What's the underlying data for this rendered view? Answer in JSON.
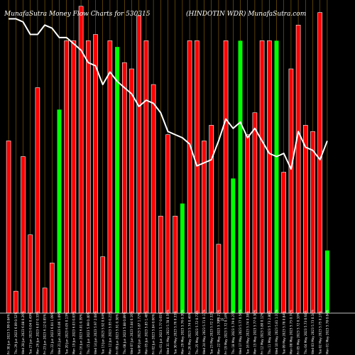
{
  "chart_data": {
    "type": "bar",
    "title_left": "MunafaSutra  Money Flow  Charts for 530315",
    "title_right": "(HINDOTIN WDR)  MunafaSutra.com",
    "categories": [
      "Fri 30 Jun 2023",
      "Thu 29 Jun 2023",
      "Wed 28 Jun 2023",
      "Tue 27 Jun 2023",
      "Mon 26 Jun 2023",
      "Fri 23 Jun 2023",
      "Thu 22 Jun 2023",
      "Wed 21 Jun 2023",
      "Tue 20 Jun 2023",
      "Mon 19 Jun 2023",
      "Fri 16 Jun 2023",
      "Thu 15 Jun 2023",
      "Wed 14 Jun 2023",
      "Tue 13 Jun 2023",
      "Mon 12 Jun 2023",
      "Fri 09 Jun 2023",
      "Thu 08 Jun 2023",
      "Wed 07 Jun 2023",
      "Tue 06 Jun 2023",
      "Mon 05 Jun 2023",
      "Fri 02 Jun 2023",
      "Thu 01 Jun 2023",
      "Wed 31 May 2023",
      "Tue 30 May 2023",
      "Mon 29 May 2023",
      "Fri 26 May 2023",
      "Thu 25 May 2023",
      "Wed 24 May 2023",
      "Tue 23 May 2023",
      "Mon 22 May 2023",
      "Fri 19 May 2023",
      "Thu 18 May 2023",
      "Wed 17 May 2023",
      "Tue 16 May 2023",
      "Mon 15 May 2023",
      "Fri 12 May 2023",
      "Thu 11 May 2023",
      "Wed 10 May 2023",
      "Tue 09 May 2023",
      "Mon 08 May 2023",
      "Fri 05 May 2023",
      "Thu 04 May 2023",
      "Wed 03 May 2023",
      "Tue 02 May 2023",
      "Mon 01 May 2023"
    ],
    "tick_labels": [
      "5.99 0.84%",
      "6.09 0.52%",
      "6.08 0.26%",
      "6.04 0.49%",
      "6.07 0.33%",
      "6.12 0.85%",
      "6.04 1.09%",
      "6.06 1.09%",
      "6.05 0.13%",
      "6.03 0.83%",
      "6.01 0.39%",
      "5.99 0.40%",
      "5.97 2.08%",
      "5.92 0.64%",
      "5.95 0.21%",
      "5.91 0.38%",
      "5.88 0.89%",
      "5.84 0.16%",
      "5.87 1.72%",
      "5.85 1.48%",
      "5.84 0.66%",
      "5.77 0.65%",
      "5.78 0.59%",
      "5.76 0.33%",
      "5.76 0.39%",
      "5.74 0.46%",
      "5.72 0.73%",
      "5.71 0.17%",
      "5.72 2.32%",
      "5.70 0.27%",
      "5.72 0.14%",
      "5.79 0.27%",
      "5.77 0.56%",
      "5.74 0.38%",
      "5.77 0.38%",
      "5.80 0.12%",
      "5.73 2.80%",
      "5.81 1.37%",
      "5.78 0.84%",
      "5.75 0.74%",
      "5.72 0.10%",
      "5.73 0.64%",
      "5.73 0.34%",
      "5.75 0.17%",
      "5.78 0.84%"
    ],
    "bar_colors": [
      "red",
      "red",
      "red",
      "red",
      "red",
      "red",
      "red",
      "green",
      "red",
      "red",
      "red",
      "red",
      "red",
      "red",
      "red",
      "green",
      "red",
      "red",
      "red",
      "red",
      "red",
      "red",
      "red",
      "red",
      "green",
      "red",
      "red",
      "red",
      "red",
      "red",
      "red",
      "green",
      "green",
      "red",
      "red",
      "red",
      "red",
      "green",
      "red",
      "red",
      "red",
      "red",
      "red",
      "red",
      "green"
    ],
    "bar_heights": [
      55,
      7,
      50,
      25,
      72,
      8,
      16,
      65,
      87,
      87,
      98,
      87,
      89,
      18,
      87,
      85,
      80,
      78,
      95,
      87,
      73,
      31,
      57,
      31,
      35,
      87,
      87,
      55,
      60,
      22,
      87,
      43,
      87,
      57,
      64,
      87,
      87,
      87,
      45,
      78,
      92,
      60,
      58,
      96,
      20
    ],
    "line_values": [
      94,
      94,
      93,
      89,
      89,
      92,
      91,
      88,
      88,
      86,
      84,
      80,
      79,
      73,
      77,
      74,
      72,
      70,
      66,
      68,
      67,
      64,
      58,
      57,
      56,
      54,
      47,
      48,
      49,
      55,
      62,
      59,
      61,
      56,
      59,
      55,
      51,
      50,
      51,
      46,
      58,
      53,
      52,
      49,
      55
    ],
    "annotation": "6.75",
    "ylim": [
      0,
      100
    ],
    "colors": {
      "background": "#000000",
      "red_bar": "#ff0000",
      "red_bar_outline": "#ffffff",
      "green_bar": "#00ff00",
      "grid": "#b8860b",
      "line": "#ffffff",
      "axis": "#ffffff"
    },
    "grid": true
  }
}
